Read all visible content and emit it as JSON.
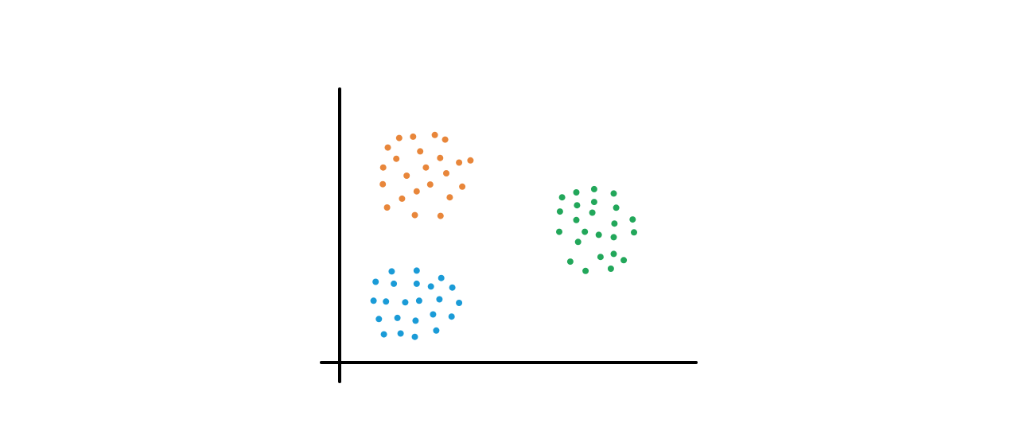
{
  "chart_data": {
    "type": "scatter",
    "title": "",
    "xlabel": "",
    "ylabel": "",
    "xlim": [
      0,
      100
    ],
    "ylim": [
      0,
      100
    ],
    "grid": false,
    "legend": "none",
    "axis_color": "#000000",
    "series": [
      {
        "color": "#E8863A",
        "points": [
          [
            16.7,
            82.1
          ],
          [
            20.6,
            82.6
          ],
          [
            26.7,
            83.2
          ],
          [
            29.6,
            81.5
          ],
          [
            13.5,
            78.6
          ],
          [
            22.6,
            77.2
          ],
          [
            15.9,
            74.5
          ],
          [
            28.2,
            74.8
          ],
          [
            33.5,
            73.1
          ],
          [
            36.7,
            73.9
          ],
          [
            12.2,
            71.3
          ],
          [
            18.8,
            68.3
          ],
          [
            24.2,
            71.3
          ],
          [
            29.9,
            69.2
          ],
          [
            12.1,
            65.2
          ],
          [
            34.4,
            64.3
          ],
          [
            21.6,
            62.6
          ],
          [
            25.4,
            65.1
          ],
          [
            17.5,
            59.9
          ],
          [
            30.9,
            60.4
          ],
          [
            13.3,
            56.7
          ],
          [
            21.1,
            53.9
          ],
          [
            28.3,
            53.6
          ]
        ]
      },
      {
        "color": "#22A75A",
        "points": [
          [
            66.4,
            62.2
          ],
          [
            71.4,
            63.4
          ],
          [
            62.4,
            60.4
          ],
          [
            76.9,
            61.8
          ],
          [
            66.6,
            57.5
          ],
          [
            71.4,
            58.7
          ],
          [
            77.6,
            56.6
          ],
          [
            61.8,
            55.2
          ],
          [
            70.9,
            54.8
          ],
          [
            82.2,
            52.3
          ],
          [
            66.4,
            52.1
          ],
          [
            77.1,
            50.8
          ],
          [
            61.6,
            47.8
          ],
          [
            68.8,
            47.8
          ],
          [
            72.7,
            46.7
          ],
          [
            76.9,
            45.8
          ],
          [
            82.6,
            47.6
          ],
          [
            66.9,
            44.1
          ],
          [
            64.7,
            36.9
          ],
          [
            73.2,
            38.6
          ],
          [
            76.9,
            39.7
          ],
          [
            79.7,
            37.4
          ],
          [
            69.0,
            33.5
          ],
          [
            76.1,
            34.3
          ]
        ]
      },
      {
        "color": "#1A9BD7",
        "points": [
          [
            14.6,
            33.3
          ],
          [
            21.6,
            33.6
          ],
          [
            10.1,
            29.5
          ],
          [
            15.2,
            28.8
          ],
          [
            21.6,
            28.8
          ],
          [
            25.6,
            27.8
          ],
          [
            28.5,
            30.9
          ],
          [
            31.6,
            27.4
          ],
          [
            9.5,
            22.6
          ],
          [
            13.0,
            22.3
          ],
          [
            18.4,
            22.0
          ],
          [
            22.3,
            22.6
          ],
          [
            28.0,
            23.1
          ],
          [
            33.5,
            21.8
          ],
          [
            11.0,
            15.9
          ],
          [
            16.2,
            16.3
          ],
          [
            21.3,
            15.3
          ],
          [
            26.2,
            17.6
          ],
          [
            31.4,
            16.8
          ],
          [
            12.4,
            10.3
          ],
          [
            17.1,
            10.6
          ],
          [
            21.1,
            9.4
          ],
          [
            27.1,
            11.7
          ]
        ]
      }
    ]
  }
}
